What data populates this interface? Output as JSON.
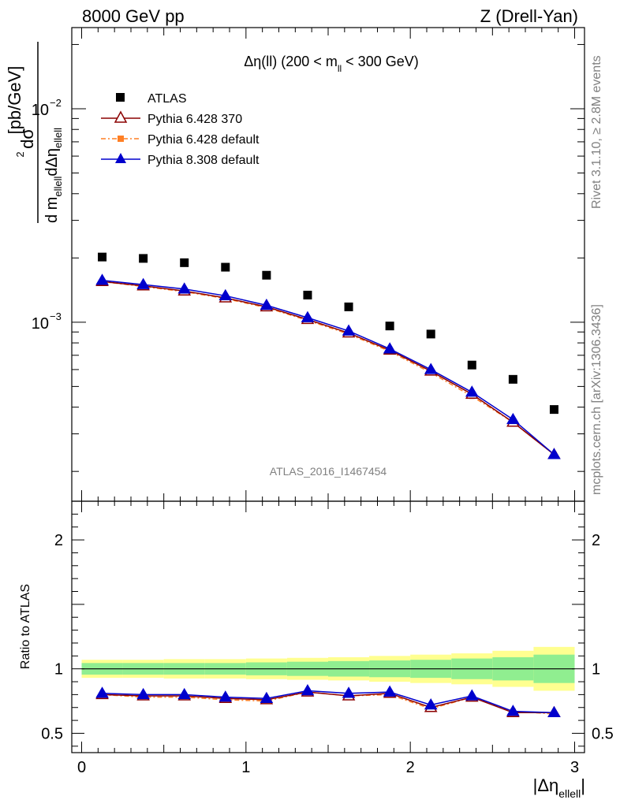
{
  "header": {
    "left": "8000 GeV pp",
    "right": "Z (Drell-Yan)"
  },
  "side_labels": {
    "top": "Rivet 3.1.10, ≥ 2.8M events",
    "bottom": "mcplots.cern.ch [arXiv:1306.3436]"
  },
  "watermark": "ATLAS_2016_I1467454",
  "colors": {
    "atlas": "#000000",
    "p6_370": "#8b0000",
    "p6_default": "#ff7f24",
    "p8_default": "#0000cd",
    "band_inner": "#90ee90",
    "band_outer": "#ffff90"
  },
  "chart_data": [
    {
      "type": "scatter",
      "title": "Δη(ll) (200 < m_ll < 300 GeV)",
      "title_parts": {
        "pre": "Δη(ll) (200 < m",
        "sub": "ll",
        "post": " < 300 GeV)"
      },
      "ylabel": "d²σ / d m_ellell dΔη_ellell [pb/GeV]",
      "ylabel_parts": {
        "num": "dσ",
        "num_sup": "2",
        "den_a": "d m",
        "den_sub_a": "ellell",
        "den_b": "dΔη",
        "den_sub_b": "ellell",
        "unit": "[pb/GeV]"
      },
      "yscale": "log",
      "xlim": [
        -0.06,
        3.06
      ],
      "ylim": [
        0.000145,
        0.024
      ],
      "yticks": [
        {
          "value": 0.01,
          "base": "10",
          "exp": "−2"
        },
        {
          "value": 0.001,
          "base": "10",
          "exp": "−3"
        }
      ],
      "legend_position": "top-left",
      "x": [
        0.125,
        0.375,
        0.625,
        0.875,
        1.125,
        1.375,
        1.625,
        1.875,
        2.125,
        2.375,
        2.625,
        2.875
      ],
      "series": [
        {
          "name": "ATLAS",
          "marker": "square",
          "values": [
            0.00202,
            0.00199,
            0.0019,
            0.00181,
            0.00166,
            0.00134,
            0.00118,
            0.00096,
            0.00088,
            0.00063,
            0.00054,
            0.00039
          ]
        },
        {
          "name": "Pythia 6.428 370",
          "marker": "open-triangle",
          "values": [
            0.00155,
            0.00148,
            0.0014,
            0.0013,
            0.00118,
            0.00103,
            0.00089,
            0.00074,
            0.00059,
            0.00046,
            0.00034,
            0.00024
          ]
        },
        {
          "name": "Pythia 6.428 default",
          "marker": "square-dashed",
          "values": [
            0.00155,
            0.00147,
            0.00139,
            0.00129,
            0.00117,
            0.00102,
            0.00088,
            0.00073,
            0.00058,
            0.00045,
            0.00034,
            0.00024
          ]
        },
        {
          "name": "Pythia 8.308 default",
          "marker": "filled-triangle",
          "values": [
            0.00157,
            0.0015,
            0.00143,
            0.00133,
            0.0012,
            0.00105,
            0.00091,
            0.00075,
            0.0006,
            0.00047,
            0.00035,
            0.00024
          ]
        }
      ]
    },
    {
      "type": "line",
      "ylabel": "Ratio to ATLAS",
      "xlabel": "|Δη_ellell|",
      "xlabel_parts": {
        "pre": "|Δη",
        "sub": "ellell",
        "post": "|"
      },
      "xlim": [
        -0.06,
        3.06
      ],
      "ylim": [
        0.35,
        2.3
      ],
      "xticks": [
        0,
        1,
        2,
        3
      ],
      "yticks": [
        0.5,
        1,
        2
      ],
      "reference_line": 1,
      "bins": [
        0.0,
        0.25,
        0.5,
        0.75,
        1.0,
        1.25,
        1.5,
        1.75,
        2.0,
        2.25,
        2.5,
        2.75,
        3.0
      ],
      "band_inner": [
        0.045,
        0.045,
        0.045,
        0.045,
        0.05,
        0.055,
        0.06,
        0.065,
        0.07,
        0.08,
        0.09,
        0.11
      ],
      "band_outer": [
        0.07,
        0.07,
        0.075,
        0.075,
        0.08,
        0.085,
        0.09,
        0.1,
        0.11,
        0.12,
        0.14,
        0.17
      ],
      "x": [
        0.125,
        0.375,
        0.625,
        0.875,
        1.125,
        1.375,
        1.625,
        1.875,
        2.125,
        2.375,
        2.625,
        2.875
      ],
      "series": [
        {
          "name": "Pythia 6.428 370",
          "values": [
            0.8,
            0.79,
            0.79,
            0.77,
            0.76,
            0.82,
            0.79,
            0.81,
            0.7,
            0.78,
            0.66,
            0.66
          ]
        },
        {
          "name": "Pythia 6.428 default",
          "values": [
            0.8,
            0.78,
            0.78,
            0.76,
            0.75,
            0.82,
            0.79,
            0.8,
            0.69,
            0.78,
            0.67,
            0.65
          ]
        },
        {
          "name": "Pythia 8.308 default",
          "values": [
            0.81,
            0.8,
            0.8,
            0.78,
            0.77,
            0.83,
            0.81,
            0.82,
            0.72,
            0.79,
            0.67,
            0.66
          ]
        }
      ]
    }
  ]
}
